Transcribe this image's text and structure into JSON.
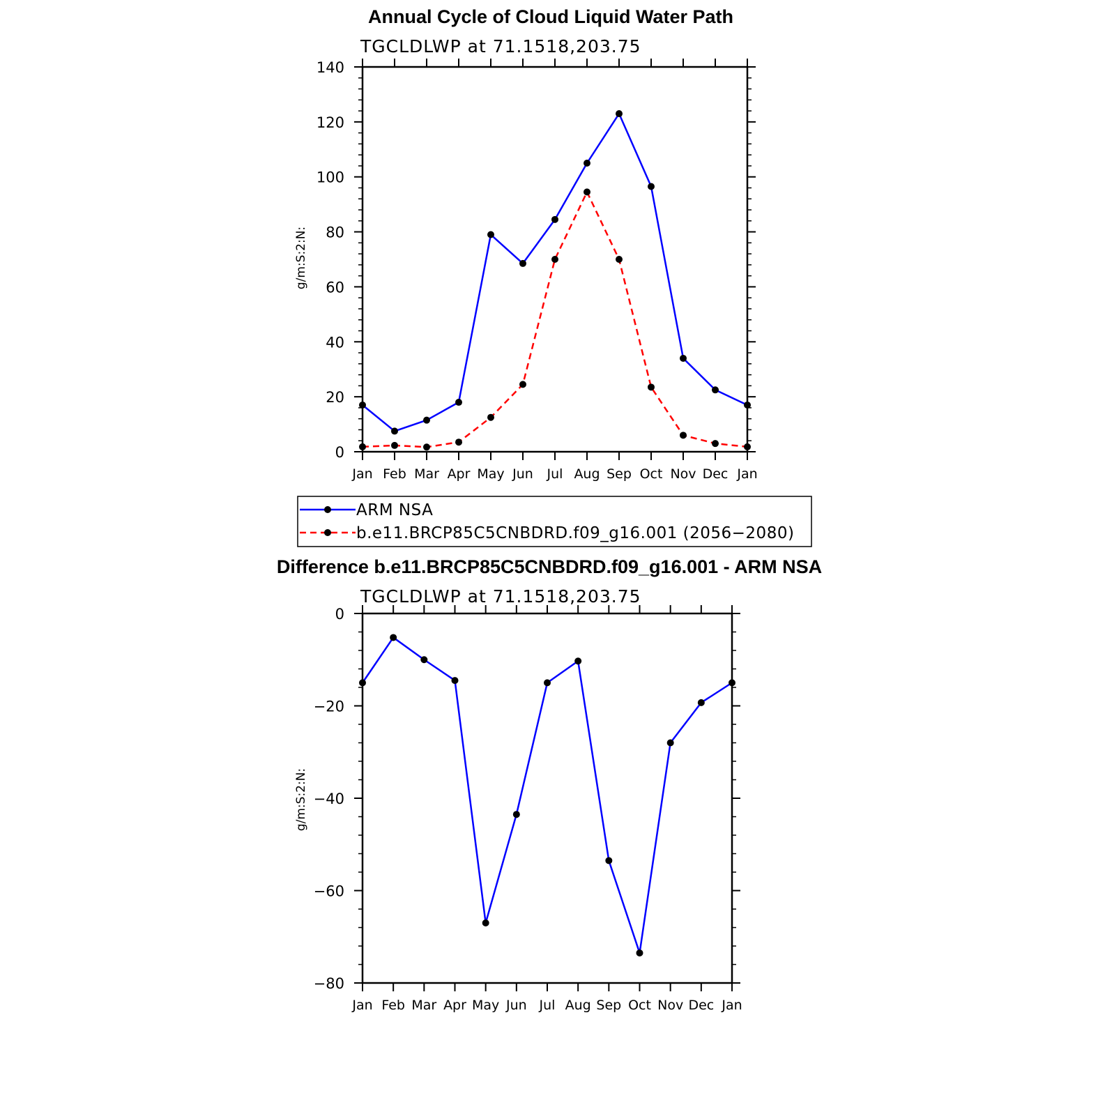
{
  "chart_data": [
    {
      "type": "line",
      "title": "Annual Cycle of Cloud Liquid Water Path",
      "subtitle": "TGCLDLWP  at  71.1518,203.75",
      "ylabel": "g/m:S:2:N:",
      "xlabel": "",
      "categories": [
        "Jan",
        "Feb",
        "Mar",
        "Apr",
        "May",
        "Jun",
        "Jul",
        "Aug",
        "Sep",
        "Oct",
        "Nov",
        "Dec",
        "Jan"
      ],
      "ylim": [
        0,
        140
      ],
      "yticks": [
        "0",
        "20",
        "40",
        "60",
        "80",
        "100",
        "120",
        "140"
      ],
      "series": [
        {
          "name": "ARM  NSA",
          "color": "#0000ff",
          "dashed": false,
          "values": [
            17,
            7.5,
            11.5,
            18,
            79,
            68.5,
            84.5,
            105,
            123,
            96.5,
            34,
            22.5,
            17
          ]
        },
        {
          "name": "b.e11.BRCP85C5CNBDRD.f09_g16.001  (2056−2080)",
          "color": "#ff0000",
          "dashed": true,
          "values": [
            1.8,
            2.3,
            1.7,
            3.5,
            12.5,
            24.5,
            70,
            94.5,
            70,
            23.5,
            6,
            3,
            1.8
          ]
        }
      ],
      "legend": "bottom"
    },
    {
      "type": "line",
      "title": "Difference b.e11.BRCP85C5CNBDRD.f09_g16.001 - ARM NSA",
      "subtitle": "TGCLDLWP  at  71.1518,203.75",
      "ylabel": "g/m:S:2:N:",
      "xlabel": "",
      "categories": [
        "Jan",
        "Feb",
        "Mar",
        "Apr",
        "May",
        "Jun",
        "Jul",
        "Aug",
        "Sep",
        "Oct",
        "Nov",
        "Dec",
        "Jan"
      ],
      "ylim": [
        -80,
        0
      ],
      "yticks": [
        "−80",
        "−60",
        "−40",
        "−20",
        "0"
      ],
      "series": [
        {
          "name": "Difference",
          "color": "#0000ff",
          "dashed": false,
          "values": [
            -15,
            -5.2,
            -10,
            -14.5,
            -67,
            -43.5,
            -15,
            -10.3,
            -53.5,
            -73.5,
            -28,
            -19.3,
            -15
          ]
        }
      ]
    }
  ],
  "colors": {
    "marker": "#000000",
    "axis": "#000000"
  }
}
